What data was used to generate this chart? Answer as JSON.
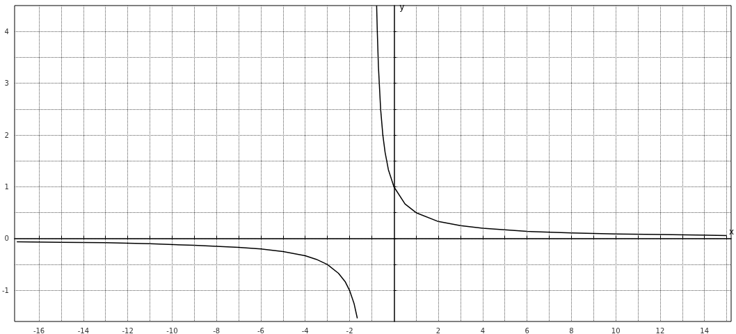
{
  "chart_data": {
    "type": "line",
    "xlabel": "x",
    "ylabel": "y",
    "xlim": [
      -17.1,
      15.2
    ],
    "ylim": [
      -1.6,
      4.5
    ],
    "xticks": [
      -16,
      {
        "value": -15,
        "label": null
      },
      -14,
      {
        "value": -13,
        "label": null
      },
      -12,
      {
        "value": -11,
        "label": null
      },
      -10,
      {
        "value": -9,
        "label": null
      },
      -8,
      {
        "value": -7,
        "label": null
      },
      -6,
      {
        "value": -5,
        "label": null
      },
      -4,
      {
        "value": -3,
        "label": null
      },
      -2,
      {
        "value": -1,
        "label": null
      },
      {
        "value": 1,
        "label": null
      },
      2,
      {
        "value": 3,
        "label": null
      },
      4,
      {
        "value": 5,
        "label": null
      },
      6,
      {
        "value": 7,
        "label": null
      },
      8,
      {
        "value": 9,
        "label": null
      },
      10,
      {
        "value": 11,
        "label": null
      },
      12,
      {
        "value": 13,
        "label": null
      },
      14,
      {
        "value": 15,
        "label": null
      }
    ],
    "yticks": [
      -1,
      {
        "value": -0.5,
        "label": null
      },
      0,
      {
        "value": 0.5,
        "label": null
      },
      1,
      {
        "value": 1.5,
        "label": null
      },
      2,
      {
        "value": 2.5,
        "label": null
      },
      3,
      {
        "value": 3.5,
        "label": null
      },
      4
    ],
    "grid": true,
    "marker": "none",
    "line_style": "solid",
    "series": [
      {
        "color": "#000000",
        "x": [
          -17,
          -15,
          -13,
          -11,
          -9,
          -7,
          -6,
          -5,
          -4,
          -3.5,
          -3,
          -2.5,
          -2.2,
          -2,
          -1.8,
          -1.65,
          -1.2,
          -0.78,
          -0.75,
          -0.7,
          -0.6,
          -0.5,
          -0.4,
          -0.25,
          0,
          0.5,
          1,
          2,
          3,
          4,
          6,
          8,
          10,
          12,
          15
        ],
        "values": [
          -0.06,
          -0.07,
          -0.08,
          -0.1,
          -0.13,
          -0.17,
          -0.2,
          -0.25,
          -0.33,
          -0.4,
          -0.5,
          -0.67,
          -0.83,
          -1,
          -1.25,
          -1.54,
          null,
          4.5,
          4,
          3.33,
          2.5,
          2,
          1.67,
          1.33,
          1,
          0.67,
          0.5,
          0.33,
          0.25,
          0.2,
          0.14,
          0.11,
          0.09,
          0.08,
          0.06
        ]
      }
    ]
  }
}
